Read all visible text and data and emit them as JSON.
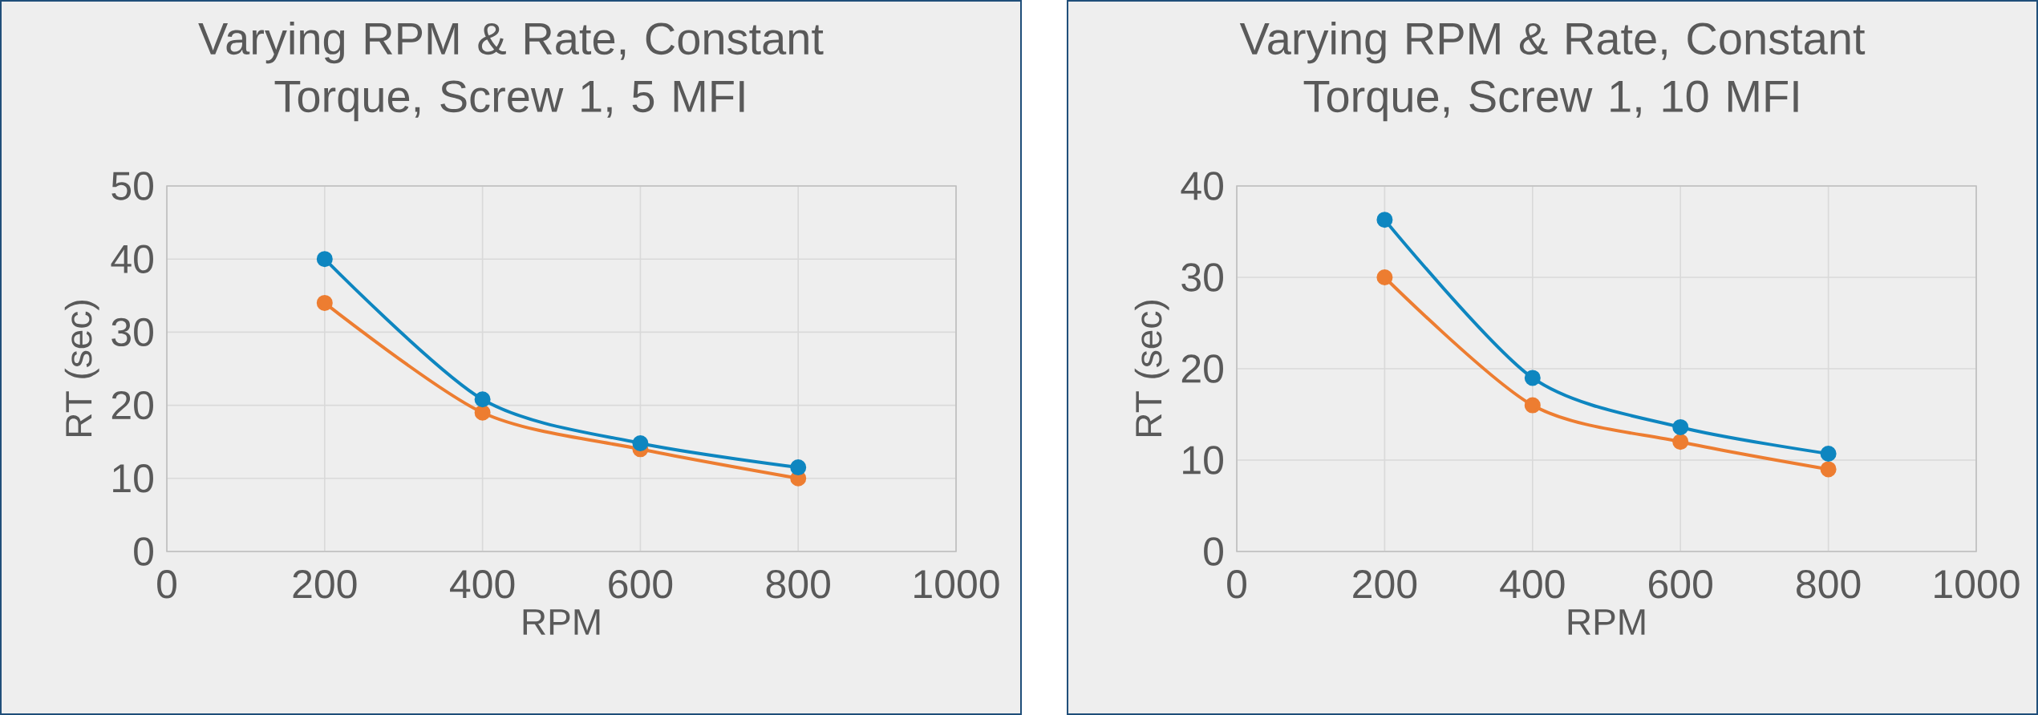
{
  "chart_data": [
    {
      "type": "line",
      "title": "Varying RPM & Rate, Constant Torque, Screw 1, 5 MFI",
      "xlabel": "RPM",
      "ylabel": "RT (sec)",
      "x": [
        200,
        400,
        600,
        800
      ],
      "series": [
        {
          "color": "#0e86c0",
          "values": [
            40,
            20.8,
            14.8,
            11.5
          ]
        },
        {
          "color": "#ed7d31",
          "values": [
            34,
            19,
            14,
            10
          ]
        }
      ],
      "xlim": [
        0,
        1000
      ],
      "xticks": [
        0,
        200,
        400,
        600,
        800,
        1000
      ],
      "ylim": [
        0,
        50
      ],
      "yticks": [
        0,
        10,
        20,
        30,
        40,
        50
      ],
      "grid": true,
      "marker": "circle"
    },
    {
      "type": "line",
      "title": "Varying RPM & Rate, Constant Torque, Screw 1, 10 MFI",
      "xlabel": "RPM",
      "ylabel": "RT (sec)",
      "x": [
        200,
        400,
        600,
        800
      ],
      "series": [
        {
          "color": "#0e86c0",
          "values": [
            36.3,
            19,
            13.6,
            10.7
          ]
        },
        {
          "color": "#ed7d31",
          "values": [
            30,
            16,
            12,
            9
          ]
        }
      ],
      "xlim": [
        0,
        1000
      ],
      "xticks": [
        0,
        200,
        400,
        600,
        800,
        1000
      ],
      "ylim": [
        0,
        40
      ],
      "yticks": [
        0,
        10,
        20,
        30,
        40
      ],
      "grid": true,
      "marker": "circle"
    }
  ]
}
